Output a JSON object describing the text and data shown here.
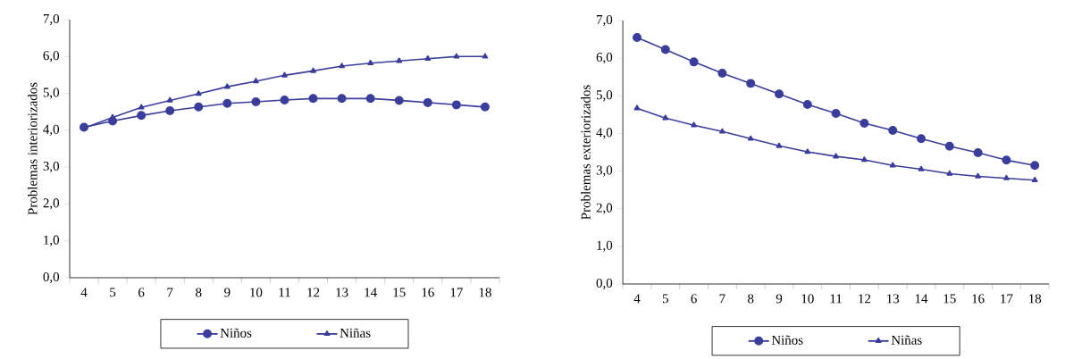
{
  "chart_data": [
    {
      "type": "line",
      "categories": [
        "4",
        "5",
        "6",
        "7",
        "8",
        "9",
        "10",
        "11",
        "12",
        "13",
        "14",
        "15",
        "16",
        "17",
        "18"
      ],
      "ylabel": "Problemas interiorizados",
      "ylim": [
        0,
        7
      ],
      "yticks": [
        {
          "value": 0,
          "label": "0,0"
        },
        {
          "value": 1,
          "label": "1,0"
        },
        {
          "value": 2,
          "label": "2,0"
        },
        {
          "value": 3,
          "label": "3,0"
        },
        {
          "value": 4,
          "label": "4,0"
        },
        {
          "value": 5,
          "label": "5,0"
        },
        {
          "value": 6,
          "label": "6,0"
        },
        {
          "value": 7,
          "label": "7,0"
        }
      ],
      "legend": "bottom",
      "series": [
        {
          "name": "Niños",
          "color": "#3a3d9c",
          "marker": "circle",
          "values": [
            4.08,
            4.25,
            4.4,
            4.53,
            4.63,
            4.73,
            4.77,
            4.82,
            4.86,
            4.86,
            4.86,
            4.81,
            4.75,
            4.69,
            4.63
          ]
        },
        {
          "name": "Niñas",
          "color": "#3a3d9c",
          "marker": "triangle",
          "values": [
            4.06,
            4.35,
            4.62,
            4.81,
            4.99,
            5.18,
            5.33,
            5.49,
            5.61,
            5.74,
            5.82,
            5.88,
            5.94,
            6.0,
            6.0
          ]
        }
      ]
    },
    {
      "type": "line",
      "categories": [
        "4",
        "5",
        "6",
        "7",
        "8",
        "9",
        "10",
        "11",
        "12",
        "13",
        "14",
        "15",
        "16",
        "17",
        "18"
      ],
      "ylabel": "Problemas exteriorizados",
      "ylim": [
        0,
        7
      ],
      "yticks": [
        {
          "value": 0,
          "label": "0,0"
        },
        {
          "value": 1,
          "label": "1,0"
        },
        {
          "value": 2,
          "label": "2,0"
        },
        {
          "value": 3,
          "label": "3,0"
        },
        {
          "value": 4,
          "label": "4,0"
        },
        {
          "value": 5,
          "label": "5,0"
        },
        {
          "value": 6,
          "label": "6,0"
        },
        {
          "value": 7,
          "label": "7,0"
        }
      ],
      "legend": "bottom",
      "series": [
        {
          "name": "Niños",
          "color": "#3a3d9c",
          "marker": "circle",
          "values": [
            6.55,
            6.23,
            5.9,
            5.6,
            5.33,
            5.05,
            4.77,
            4.53,
            4.27,
            4.08,
            3.86,
            3.66,
            3.49,
            3.29,
            3.15
          ]
        },
        {
          "name": "Niñas",
          "color": "#3a3d9c",
          "marker": "triangle",
          "values": [
            4.67,
            4.41,
            4.22,
            4.05,
            3.86,
            3.67,
            3.51,
            3.39,
            3.3,
            3.15,
            3.05,
            2.93,
            2.86,
            2.81,
            2.76
          ]
        }
      ]
    }
  ]
}
